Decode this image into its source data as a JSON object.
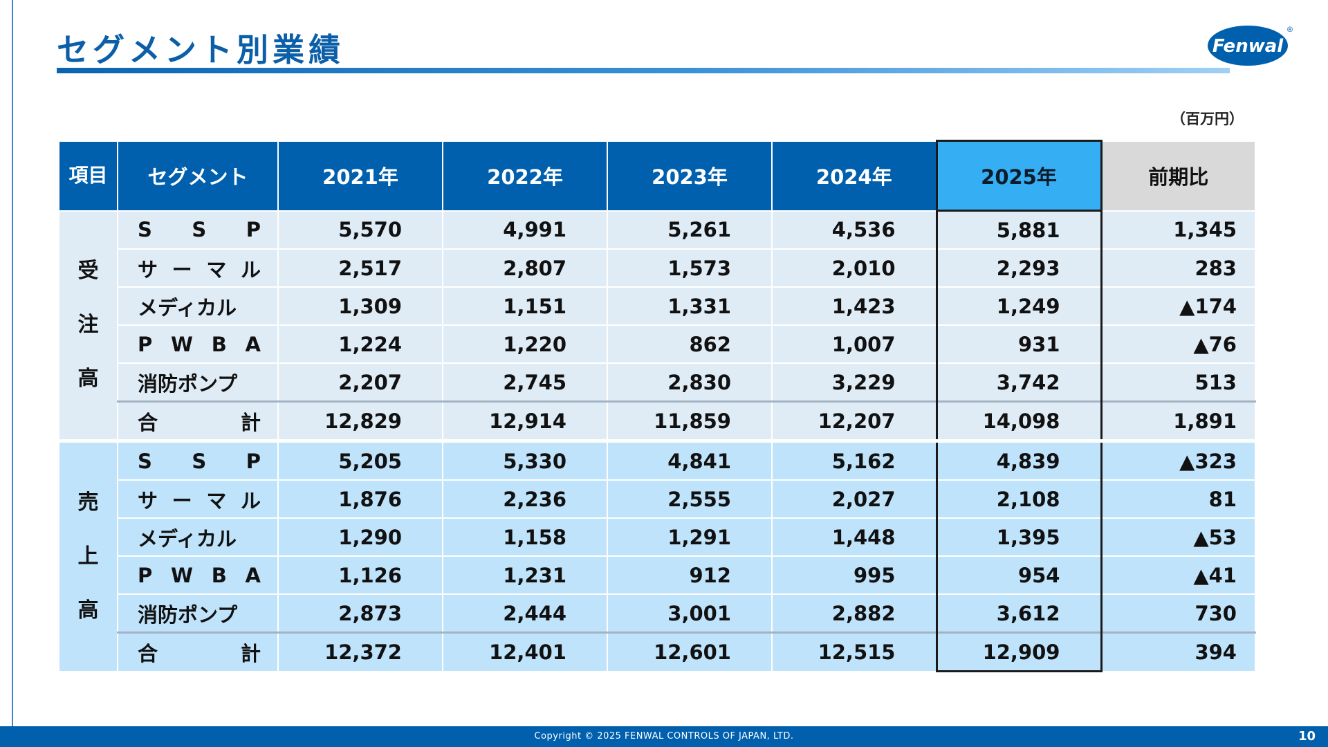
{
  "title": "セグメント別業績",
  "logo": {
    "text": "Fenwal",
    "mark": "®",
    "color": "#0060ad"
  },
  "unit": "（百万円）",
  "table": {
    "headers": {
      "item": "項目",
      "segment": "セグメント",
      "years": [
        "2021年",
        "2022年",
        "2023年",
        "2024年",
        "2025年"
      ],
      "diff": "前期比"
    },
    "orders": {
      "group": [
        "受",
        "注",
        "高"
      ],
      "rows": [
        {
          "label": [
            "S",
            "S",
            "P"
          ],
          "values": [
            "5,570",
            "4,991",
            "5,261",
            "4,536",
            "5,881"
          ],
          "diff": "1,345"
        },
        {
          "label": [
            "サ",
            "ー",
            "マ",
            "ル"
          ],
          "values": [
            "2,517",
            "2,807",
            "1,573",
            "2,010",
            "2,293"
          ],
          "diff": "283"
        },
        {
          "label": [
            "メディカル"
          ],
          "values": [
            "1,309",
            "1,151",
            "1,331",
            "1,423",
            "1,249"
          ],
          "diff": "▲174"
        },
        {
          "label": [
            "P",
            "W",
            "B",
            "A"
          ],
          "values": [
            "1,224",
            "1,220",
            "862",
            "1,007",
            "931"
          ],
          "diff": "▲76"
        },
        {
          "label": [
            "消防ポンプ"
          ],
          "values": [
            "2,207",
            "2,745",
            "2,830",
            "3,229",
            "3,742"
          ],
          "diff": "513"
        },
        {
          "label": [
            "合",
            "計"
          ],
          "values": [
            "12,829",
            "12,914",
            "11,859",
            "12,207",
            "14,098"
          ],
          "diff": "1,891"
        }
      ]
    },
    "sales": {
      "group": [
        "売",
        "上",
        "高"
      ],
      "rows": [
        {
          "label": [
            "S",
            "S",
            "P"
          ],
          "values": [
            "5,205",
            "5,330",
            "4,841",
            "5,162",
            "4,839"
          ],
          "diff": "▲323"
        },
        {
          "label": [
            "サ",
            "ー",
            "マ",
            "ル"
          ],
          "values": [
            "1,876",
            "2,236",
            "2,555",
            "2,027",
            "2,108"
          ],
          "diff": "81"
        },
        {
          "label": [
            "メディカル"
          ],
          "values": [
            "1,290",
            "1,158",
            "1,291",
            "1,448",
            "1,395"
          ],
          "diff": "▲53"
        },
        {
          "label": [
            "P",
            "W",
            "B",
            "A"
          ],
          "values": [
            "1,126",
            "1,231",
            "912",
            "995",
            "954"
          ],
          "diff": "▲41"
        },
        {
          "label": [
            "消防ポンプ"
          ],
          "values": [
            "2,873",
            "2,444",
            "3,001",
            "2,882",
            "3,612"
          ],
          "diff": "730"
        },
        {
          "label": [
            "合",
            "計"
          ],
          "values": [
            "12,372",
            "12,401",
            "12,601",
            "12,515",
            "12,909"
          ],
          "diff": "394"
        }
      ]
    }
  },
  "footer": {
    "copyright": "Copyright © 2025 FENWAL CONTROLS OF JAPAN, LTD.",
    "page": "10"
  }
}
